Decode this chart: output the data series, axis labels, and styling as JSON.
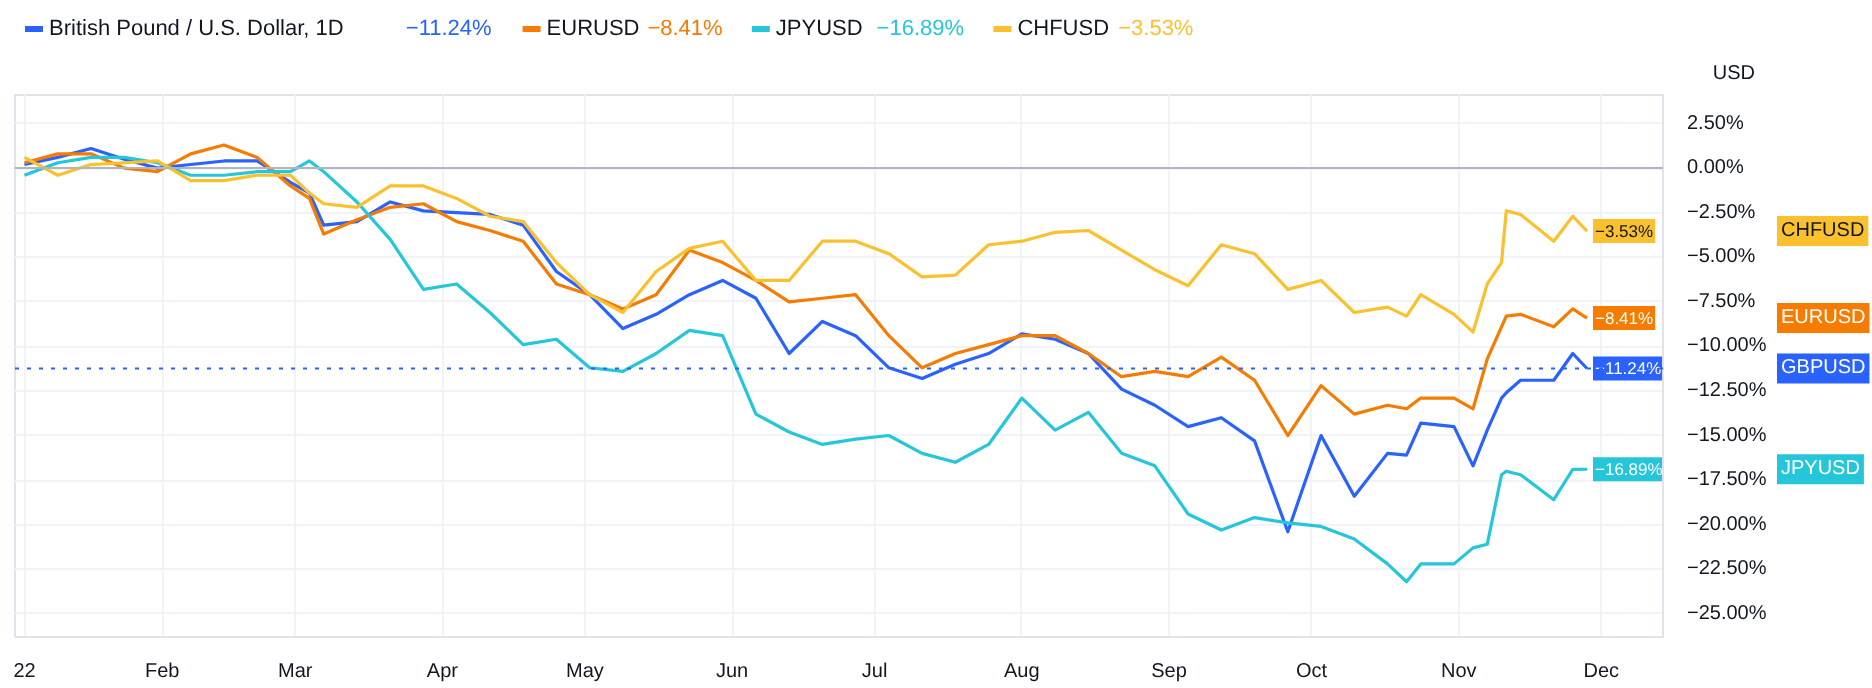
{
  "chart_data": {
    "type": "line",
    "ylabel": "USD",
    "legend": "top left",
    "grid": true,
    "line_style": "solid",
    "marker": "none",
    "x": [
      "2022-01-03",
      "2022-01-10",
      "2022-01-17",
      "2022-01-24",
      "2022-01-31",
      "2022-02-07",
      "2022-02-14",
      "2022-02-21",
      "2022-02-28",
      "2022-03-04",
      "2022-03-07",
      "2022-03-14",
      "2022-03-21",
      "2022-03-28",
      "2022-04-04",
      "2022-04-11",
      "2022-04-18",
      "2022-04-25",
      "2022-05-02",
      "2022-05-09",
      "2022-05-16",
      "2022-05-23",
      "2022-05-30",
      "2022-06-06",
      "2022-06-13",
      "2022-06-20",
      "2022-06-27",
      "2022-07-04",
      "2022-07-11",
      "2022-07-18",
      "2022-07-25",
      "2022-08-01",
      "2022-08-08",
      "2022-08-15",
      "2022-08-22",
      "2022-08-29",
      "2022-09-05",
      "2022-09-12",
      "2022-09-19",
      "2022-09-26",
      "2022-10-03",
      "2022-10-10",
      "2022-10-17",
      "2022-10-21",
      "2022-10-24",
      "2022-10-31",
      "2022-11-04",
      "2022-11-07",
      "2022-11-10",
      "2022-11-11",
      "2022-11-14",
      "2022-11-21",
      "2022-11-25",
      "2022-11-28"
    ],
    "xlim": [
      "2022-01-01",
      "2022-12-14"
    ],
    "xticks": [
      {
        "value": "2022-01-03",
        "label": "22"
      },
      {
        "value": "2022-02-01",
        "label": "Feb"
      },
      {
        "value": "2022-03-01",
        "label": "Mar"
      },
      {
        "value": "2022-04-01",
        "label": "Apr"
      },
      {
        "value": "2022-05-01",
        "label": "May"
      },
      {
        "value": "2022-06-01",
        "label": "Jun"
      },
      {
        "value": "2022-07-01",
        "label": "Jul"
      },
      {
        "value": "2022-08-01",
        "label": "Aug"
      },
      {
        "value": "2022-09-01",
        "label": "Sep"
      },
      {
        "value": "2022-10-01",
        "label": "Oct"
      },
      {
        "value": "2022-11-01",
        "label": "Nov"
      },
      {
        "value": "2022-12-01",
        "label": "Dec"
      }
    ],
    "ylim": [
      -26.3,
      4.1
    ],
    "yticks": [
      {
        "value": 2.5,
        "label": "2.50%"
      },
      {
        "value": 0,
        "label": "0.00%"
      },
      {
        "value": -2.5,
        "label": "−2.50%"
      },
      {
        "value": -5,
        "label": "−5.00%"
      },
      {
        "value": -7.5,
        "label": "−7.50%"
      },
      {
        "value": -10,
        "label": "−10.00%"
      },
      {
        "value": -12.5,
        "label": "−12.50%"
      },
      {
        "value": -15,
        "label": "−15.00%"
      },
      {
        "value": -17.5,
        "label": "−17.50%"
      },
      {
        "value": -20,
        "label": "−20.00%"
      },
      {
        "value": -22.5,
        "label": "−22.50%"
      },
      {
        "value": -25,
        "label": "−25.00%"
      }
    ],
    "series": [
      {
        "name": "British Pound / U.S. Dollar, 1D",
        "color": "#2962ff",
        "values": [
          0.2,
          0.6,
          1.1,
          0.5,
          0.0,
          0.2,
          0.4,
          0.4,
          -0.8,
          -1.4,
          -3.2,
          -3.0,
          -1.9,
          -2.4,
          -2.5,
          -2.6,
          -3.2,
          -5.8,
          -7.1,
          -9.0,
          -8.2,
          -7.1,
          -6.3,
          -7.3,
          -10.4,
          -8.6,
          -9.4,
          -11.2,
          -11.8,
          -11.0,
          -10.4,
          -9.3,
          -9.6,
          -10.4,
          -12.4,
          -13.3,
          -14.5,
          -14.0,
          -15.3,
          -20.4,
          -15.0,
          -18.4,
          -16.0,
          -16.1,
          -14.3,
          -14.5,
          -16.7,
          -14.7,
          -12.9,
          -12.6,
          -11.9,
          -11.9,
          -10.4,
          -11.24
        ],
        "value_labels": [
          null,
          null,
          null,
          null,
          null,
          null,
          null,
          null,
          null,
          null,
          null,
          null,
          null,
          null,
          null,
          null,
          null,
          null,
          null,
          null,
          null,
          null,
          null,
          null,
          null,
          null,
          null,
          null,
          null,
          null,
          null,
          null,
          null,
          null,
          null,
          null,
          null,
          null,
          null,
          null,
          null,
          null,
          null,
          null,
          null,
          null,
          null,
          null,
          null,
          null,
          null,
          null,
          null,
          "−11.24%"
        ]
      },
      {
        "name": "EURUSD",
        "color": "#f57c00",
        "values": [
          0.3,
          0.8,
          0.8,
          0.0,
          -0.2,
          0.8,
          1.3,
          0.6,
          -1.0,
          -1.7,
          -3.7,
          -2.9,
          -2.2,
          -2.0,
          -3.0,
          -3.5,
          -4.1,
          -6.5,
          -7.1,
          -7.9,
          -7.1,
          -4.6,
          -5.3,
          -6.3,
          -7.5,
          -7.3,
          -7.1,
          -9.4,
          -11.2,
          -10.4,
          -9.9,
          -9.4,
          -9.4,
          -10.4,
          -11.7,
          -11.4,
          -11.7,
          -10.6,
          -11.9,
          -15.0,
          -12.2,
          -13.8,
          -13.3,
          -13.5,
          -12.9,
          -12.9,
          -13.5,
          -10.7,
          -8.9,
          -8.3,
          -8.2,
          -8.9,
          -7.9,
          -8.41
        ],
        "value_labels": [
          null,
          null,
          null,
          null,
          null,
          null,
          null,
          null,
          null,
          null,
          null,
          null,
          null,
          null,
          null,
          null,
          null,
          null,
          null,
          null,
          null,
          null,
          null,
          null,
          null,
          null,
          null,
          null,
          null,
          null,
          null,
          null,
          null,
          null,
          null,
          null,
          null,
          null,
          null,
          null,
          null,
          null,
          null,
          null,
          null,
          null,
          null,
          null,
          null,
          null,
          null,
          null,
          null,
          "−8.41%"
        ]
      },
      {
        "name": "JPYUSD",
        "color": "#26c6da",
        "values": [
          -0.4,
          0.3,
          0.6,
          0.6,
          0.3,
          -0.4,
          -0.4,
          -0.2,
          -0.2,
          0.4,
          -0.2,
          -1.9,
          -4.0,
          -6.8,
          -6.5,
          -8.1,
          -9.9,
          -9.6,
          -11.2,
          -11.4,
          -10.4,
          -9.1,
          -9.4,
          -13.8,
          -14.8,
          -15.5,
          -15.2,
          -15.0,
          -16.0,
          -16.5,
          -15.5,
          -12.9,
          -14.7,
          -13.7,
          -16.0,
          -16.7,
          -19.4,
          -20.3,
          -19.6,
          -19.9,
          -20.1,
          -20.8,
          -22.2,
          -23.2,
          -22.2,
          -22.2,
          -21.3,
          -21.1,
          -17.2,
          -17.0,
          -17.2,
          -18.6,
          -16.9,
          -16.89
        ],
        "value_labels": [
          null,
          null,
          null,
          null,
          null,
          null,
          null,
          null,
          null,
          null,
          null,
          null,
          null,
          null,
          null,
          null,
          null,
          null,
          null,
          null,
          null,
          null,
          null,
          null,
          null,
          null,
          null,
          null,
          null,
          null,
          null,
          null,
          null,
          null,
          null,
          null,
          null,
          null,
          null,
          null,
          null,
          null,
          null,
          null,
          null,
          null,
          null,
          null,
          null,
          null,
          null,
          null,
          null,
          "−16.89%"
        ]
      },
      {
        "name": "CHFUSD",
        "color": "#fbc02d",
        "values": [
          0.6,
          -0.4,
          0.2,
          0.3,
          0.4,
          -0.7,
          -0.7,
          -0.4,
          -0.4,
          -1.4,
          -2.0,
          -2.2,
          -1.0,
          -1.0,
          -1.7,
          -2.7,
          -3.0,
          -5.3,
          -7.1,
          -8.1,
          -5.8,
          -4.5,
          -4.1,
          -6.3,
          -6.3,
          -4.1,
          -4.1,
          -4.8,
          -6.1,
          -6.0,
          -4.3,
          -4.1,
          -3.6,
          -3.5,
          -4.6,
          -5.7,
          -6.6,
          -4.3,
          -4.8,
          -6.8,
          -6.3,
          -8.1,
          -7.8,
          -8.3,
          -7.1,
          -8.2,
          -9.2,
          -6.5,
          -5.3,
          -2.4,
          -2.6,
          -4.1,
          -2.7,
          -3.53
        ],
        "value_labels": [
          null,
          null,
          null,
          null,
          null,
          null,
          null,
          null,
          null,
          null,
          null,
          null,
          null,
          null,
          null,
          null,
          null,
          null,
          null,
          null,
          null,
          null,
          null,
          null,
          null,
          null,
          null,
          null,
          null,
          null,
          null,
          null,
          null,
          null,
          null,
          null,
          null,
          null,
          null,
          null,
          null,
          null,
          null,
          null,
          null,
          null,
          null,
          null,
          null,
          null,
          null,
          null,
          null,
          "−3.53%"
        ]
      }
    ],
    "ref_lines": [
      {
        "axis": "y",
        "value": 0,
        "color": "#b2b5be",
        "line_style": "solid"
      },
      {
        "axis": "y",
        "value": -11.24,
        "color": "#2962ff",
        "line_style": "dotted"
      }
    ],
    "annotations": [
      "GBPUSD",
      "EURUSD",
      "JPYUSD",
      "CHFUSD"
    ]
  }
}
